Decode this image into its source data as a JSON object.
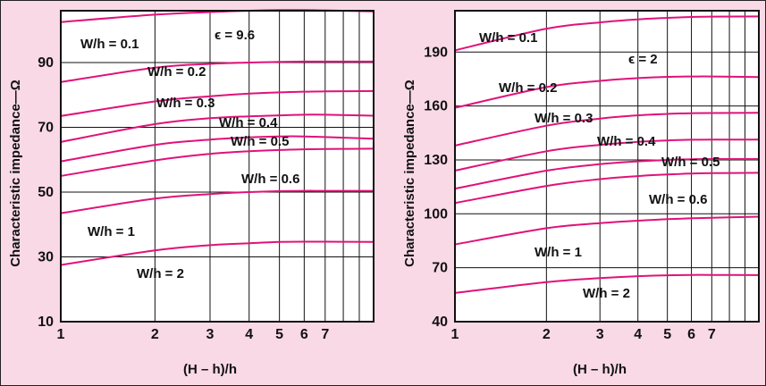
{
  "colors": {
    "background": "#f9d9e6",
    "plot_bg": "#ffffff",
    "curve": "#e0127a",
    "grid": "#111111"
  },
  "chart_data": [
    {
      "type": "line",
      "x_scale": "log",
      "xlabel": "(H – h)/h",
      "ylabel": "Characteristic impedance—Ω",
      "xlim": [
        1,
        10
      ],
      "ylim": [
        10,
        106
      ],
      "x_tick_labels": [
        "1",
        "2",
        "3",
        "4",
        "5",
        "6",
        "7"
      ],
      "x_ticks": [
        1,
        2,
        3,
        4,
        5,
        6,
        7
      ],
      "x_minor_gridlines": [
        8,
        9
      ],
      "y_tick_labels": [
        "10",
        "30",
        "50",
        "70",
        "90"
      ],
      "y_ticks": [
        10,
        30,
        50,
        70,
        90
      ],
      "grid": true,
      "annotation": "ϵ = 9.6",
      "series": [
        {
          "name": "W/h = 0.1",
          "x": [
            1,
            2,
            3,
            4,
            5,
            6,
            7,
            10
          ],
          "y": [
            102.5,
            104.8,
            105.6,
            106.0,
            106.2,
            106.2,
            106.1,
            105.8
          ]
        },
        {
          "name": "W/h = 0.2",
          "x": [
            1,
            2,
            3,
            4,
            5,
            6,
            7,
            10
          ],
          "y": [
            84.0,
            88.4,
            89.6,
            90.0,
            90.2,
            90.3,
            90.3,
            90.3
          ]
        },
        {
          "name": "W/h = 0.3",
          "x": [
            1,
            2,
            3,
            4,
            5,
            6,
            7,
            10
          ],
          "y": [
            73.5,
            78.0,
            79.6,
            80.4,
            80.8,
            81.0,
            81.1,
            81.2
          ]
        },
        {
          "name": "W/h = 0.4",
          "x": [
            1,
            2,
            3,
            4,
            5,
            6,
            7,
            10
          ],
          "y": [
            65.5,
            71.0,
            72.8,
            73.4,
            73.7,
            73.9,
            73.9,
            73.6
          ]
        },
        {
          "name": "W/h = 0.5",
          "x": [
            1,
            2,
            3,
            4,
            5,
            6,
            7,
            10
          ],
          "y": [
            59.5,
            64.6,
            66.2,
            66.9,
            67.2,
            67.2,
            67.0,
            66.5
          ]
        },
        {
          "name": "W/h = 0.6",
          "x": [
            1,
            2,
            3,
            4,
            5,
            6,
            7,
            10
          ],
          "y": [
            55.0,
            59.8,
            61.8,
            62.6,
            63.0,
            63.2,
            63.3,
            63.4
          ]
        },
        {
          "name": "W/h = 1",
          "x": [
            1,
            2,
            3,
            4,
            5,
            6,
            7,
            10
          ],
          "y": [
            43.5,
            48.0,
            49.4,
            50.0,
            50.3,
            50.4,
            50.4,
            50.4
          ]
        },
        {
          "name": "W/h =  2",
          "x": [
            1,
            2,
            3,
            4,
            5,
            6,
            7,
            10
          ],
          "y": [
            27.5,
            32.0,
            33.6,
            34.2,
            34.6,
            34.7,
            34.7,
            34.6
          ]
        }
      ]
    },
    {
      "type": "line",
      "x_scale": "log",
      "xlabel": "(H – h)/h",
      "ylabel": "Characteristic impedance—Ω",
      "xlim": [
        1,
        10
      ],
      "ylim": [
        40,
        213
      ],
      "x_tick_labels": [
        "1",
        "2",
        "3",
        "4",
        "5",
        "6",
        "7"
      ],
      "x_ticks": [
        1,
        2,
        3,
        4,
        5,
        6,
        7
      ],
      "x_minor_gridlines": [
        8,
        9
      ],
      "y_tick_labels": [
        "40",
        "70",
        "100",
        "130",
        "160",
        "190"
      ],
      "y_ticks": [
        40,
        70,
        100,
        130,
        160,
        190
      ],
      "grid": true,
      "annotation": "ϵ = 2",
      "series": [
        {
          "name": "W/h = 0.1",
          "x": [
            1,
            2,
            3,
            4,
            5,
            6,
            7,
            10
          ],
          "y": [
            191,
            203,
            206.5,
            208.2,
            209.0,
            209.5,
            209.7,
            209.8
          ]
        },
        {
          "name": "W/h = 0.2",
          "x": [
            1,
            2,
            3,
            4,
            5,
            6,
            7,
            10
          ],
          "y": [
            159,
            170.5,
            174.0,
            175.5,
            176.2,
            176.4,
            176.4,
            176.1
          ]
        },
        {
          "name": "W/h = 0.3",
          "x": [
            1,
            2,
            3,
            4,
            5,
            6,
            7,
            10
          ],
          "y": [
            138,
            149.0,
            153.0,
            154.8,
            155.6,
            156.0,
            156.1,
            156.2
          ]
        },
        {
          "name": "W/h = 0.4",
          "x": [
            1,
            2,
            3,
            4,
            5,
            6,
            7,
            10
          ],
          "y": [
            124,
            134.8,
            138.4,
            140.0,
            140.8,
            141.2,
            141.3,
            141.3
          ]
        },
        {
          "name": "W/h = 0.5",
          "x": [
            1,
            2,
            3,
            4,
            5,
            6,
            7,
            10
          ],
          "y": [
            114,
            124.0,
            127.6,
            129.2,
            130.0,
            130.4,
            130.5,
            130.5
          ]
        },
        {
          "name": "W/h = 0.6",
          "x": [
            1,
            2,
            3,
            4,
            5,
            6,
            7,
            10
          ],
          "y": [
            106,
            115.5,
            119.3,
            121.0,
            121.9,
            122.4,
            122.6,
            122.8
          ]
        },
        {
          "name": "W/h = 1",
          "x": [
            1,
            2,
            3,
            4,
            5,
            6,
            7,
            10
          ],
          "y": [
            83,
            92.0,
            94.8,
            96.2,
            97.0,
            97.5,
            97.8,
            98.4
          ]
        },
        {
          "name": "W/h = 2",
          "x": [
            1,
            2,
            3,
            4,
            5,
            6,
            7,
            10
          ],
          "y": [
            56,
            62.0,
            64.2,
            65.3,
            65.8,
            66.0,
            66.0,
            65.9
          ]
        }
      ]
    }
  ]
}
